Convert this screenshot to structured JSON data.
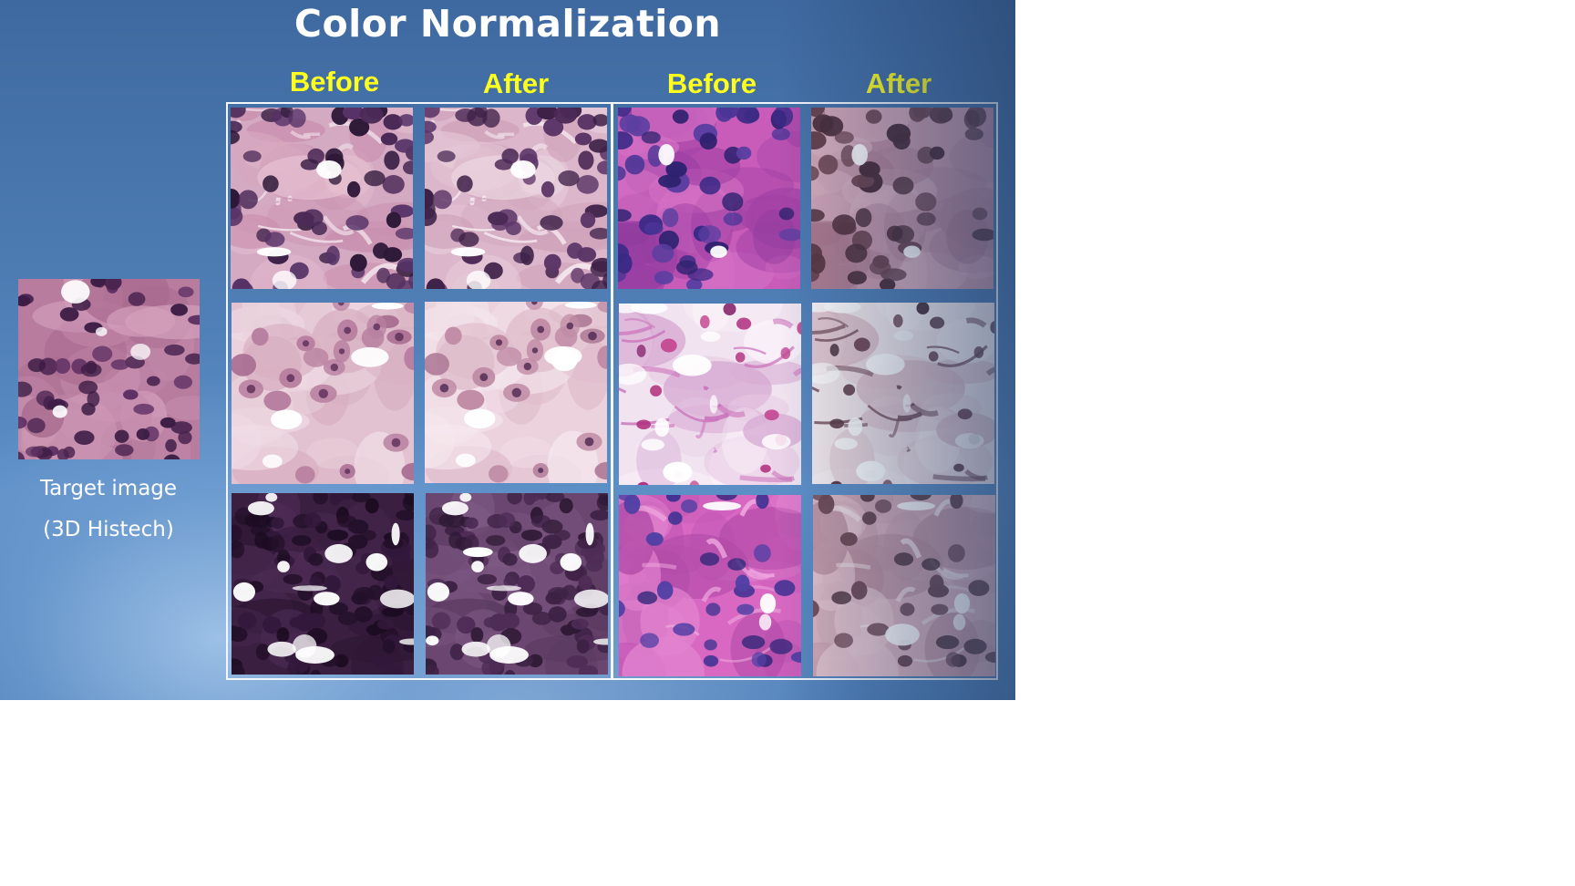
{
  "slide": {
    "title": "Color Normalization",
    "target": {
      "caption_line1": "Target image",
      "caption_line2": "(3D Histech)",
      "image_icon": "histology-target-tile"
    },
    "columns": [
      {
        "label": "Before"
      },
      {
        "label": "After"
      },
      {
        "label": "Before"
      },
      {
        "label": "After"
      }
    ],
    "colors": {
      "background": "#4f7fb6",
      "title": "#ffffff",
      "column_header": "#ffff1e",
      "frame": "#f2f6fb"
    }
  }
}
